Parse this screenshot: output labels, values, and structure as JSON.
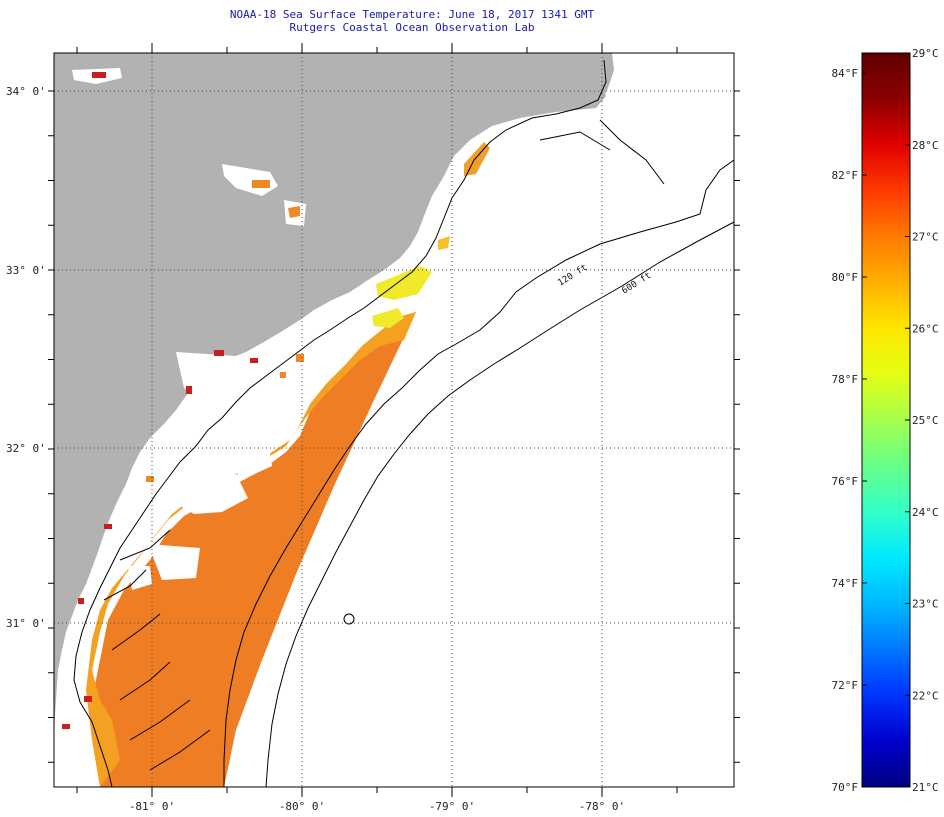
{
  "header": {
    "title_line1": "NOAA-18 Sea Surface Temperature:  June 18, 2017 1341 GMT",
    "title_line2": "Rutgers Coastal Ocean Observation Lab"
  },
  "axes": {
    "lat_labels": [
      "34° 0'",
      "33° 0'",
      "32° 0'",
      "31° 0'"
    ],
    "lon_labels": [
      "-81° 0'",
      "-80° 0'",
      "-79° 0'",
      "-78° 0'"
    ]
  },
  "contours": {
    "shelf_120": "120 ft",
    "shelf_600": "600 ft"
  },
  "colorbar": {
    "fahrenheit_labels": [
      "84°F",
      "82°F",
      "80°F",
      "78°F",
      "76°F",
      "74°F",
      "72°F",
      "70°F"
    ],
    "celsius_labels": [
      "29°C",
      "28°C",
      "27°C",
      "26°C",
      "25°C",
      "24°C",
      "23°C",
      "22°C",
      "21°C"
    ],
    "colors": [
      "#000080",
      "#0000cc",
      "#0033ff",
      "#0077ff",
      "#00b8ff",
      "#00eaff",
      "#33ffc8",
      "#66ff88",
      "#a4ff4c",
      "#e4ff14",
      "#ffe600",
      "#ffb000",
      "#ff7a00",
      "#ff3a00",
      "#e00000",
      "#8c0000",
      "#600000"
    ]
  },
  "colors": {
    "land": "#b2b2b2",
    "cloud": "#ffffff",
    "sst_warm": "#ee7722",
    "sst_mid": "#f5a11f",
    "sst_yellow": "#f2ee2a",
    "title_blue": "#1a1aa6"
  }
}
